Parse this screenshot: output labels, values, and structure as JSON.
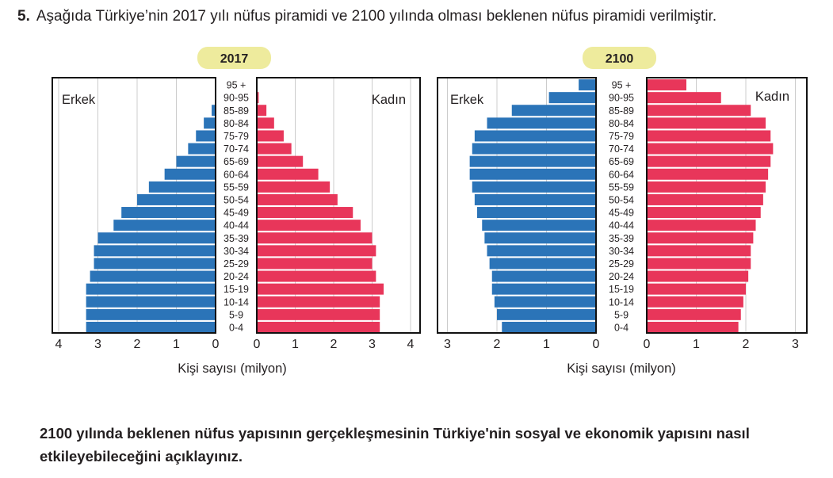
{
  "question": {
    "number": "5.",
    "text": "Aşağıda Türkiye’nin 2017 yılı nüfus piramidi ve 2100 yılında olması beklenen nüfus piramidi verilmiştir.",
    "prompt": "2100 yılında beklenen nüfus yapısının gerçekleşmesinin Türkiye'nin sosyal ve ekonomik yapısını nasıl etkileyebileceğini açıklayınız."
  },
  "colors": {
    "male": "#2b74b8",
    "female": "#e8365a",
    "year_badge": "#eeeb9d",
    "grid": "#cccccc"
  },
  "chart_data": [
    {
      "type": "bar",
      "title": "2017",
      "xlabel": "Kişi sayısı (milyon)",
      "left_label": "Erkek",
      "right_label": "Kadın",
      "xlim": [
        0,
        4
      ],
      "xticks": [
        "0",
        "1",
        "2",
        "3",
        "4"
      ],
      "categories": [
        "0-4",
        "5-9",
        "10-14",
        "15-19",
        "20-24",
        "25-29",
        "30-34",
        "35-39",
        "40-44",
        "45-49",
        "50-54",
        "55-59",
        "60-64",
        "65-69",
        "70-74",
        "75-79",
        "80-84",
        "85-89",
        "90-95",
        "95 +"
      ],
      "series": [
        {
          "name": "Erkek",
          "values": [
            3.3,
            3.3,
            3.3,
            3.3,
            3.2,
            3.1,
            3.1,
            3.0,
            2.6,
            2.4,
            2.0,
            1.7,
            1.3,
            1.0,
            0.7,
            0.5,
            0.3,
            0.1,
            0.0,
            0.0
          ]
        },
        {
          "name": "Kadın",
          "values": [
            3.2,
            3.2,
            3.2,
            3.3,
            3.1,
            3.0,
            3.1,
            3.0,
            2.7,
            2.5,
            2.1,
            1.9,
            1.6,
            1.2,
            0.9,
            0.7,
            0.45,
            0.25,
            0.05,
            0.0
          ]
        }
      ]
    },
    {
      "type": "bar",
      "title": "2100",
      "xlabel": "Kişi sayısı (milyon)",
      "left_label": "Erkek",
      "right_label": "Kadın",
      "xlim": [
        0,
        3
      ],
      "xticks": [
        "0",
        "1",
        "2",
        "3"
      ],
      "categories": [
        "0-4",
        "5-9",
        "10-14",
        "15-19",
        "20-24",
        "25-29",
        "30-34",
        "35-39",
        "40-44",
        "45-49",
        "50-54",
        "55-59",
        "60-64",
        "65-69",
        "70-74",
        "75-79",
        "80-84",
        "85-89",
        "90-95",
        "95 +"
      ],
      "series": [
        {
          "name": "Erkek",
          "values": [
            1.9,
            2.0,
            2.05,
            2.1,
            2.1,
            2.15,
            2.2,
            2.25,
            2.3,
            2.4,
            2.45,
            2.5,
            2.55,
            2.55,
            2.5,
            2.45,
            2.2,
            1.7,
            0.95,
            0.35
          ]
        },
        {
          "name": "Kadın",
          "values": [
            1.85,
            1.9,
            1.95,
            2.0,
            2.05,
            2.1,
            2.1,
            2.15,
            2.2,
            2.3,
            2.35,
            2.4,
            2.45,
            2.5,
            2.55,
            2.5,
            2.4,
            2.1,
            1.5,
            0.8
          ]
        }
      ]
    }
  ]
}
